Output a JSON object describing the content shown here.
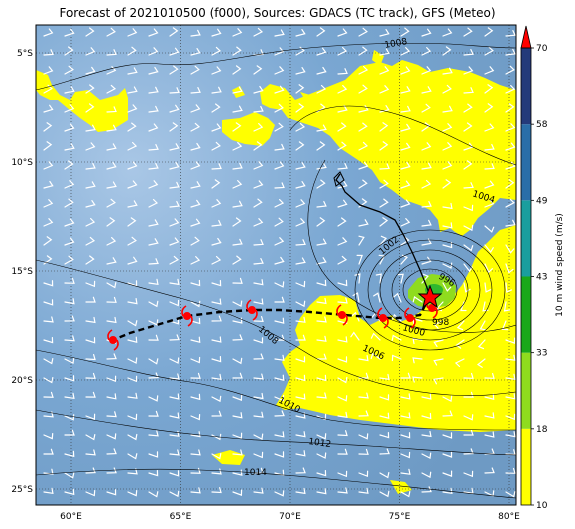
{
  "title": "Forecast of 2021010500 (f000), Sources: GDACS (TC track), GFS (Meteo)",
  "map": {
    "lon_range": [
      58.5,
      80.5
    ],
    "lat_range": [
      -25.5,
      -3.5
    ],
    "lon_ticks": [
      "60°E",
      "65°E",
      "70°E",
      "75°E",
      "80°E"
    ],
    "lat_ticks": [
      "5°S",
      "10°S",
      "15°S",
      "20°S",
      "25°S"
    ],
    "gridlines": "dotted",
    "colors": {
      "ocean": "#7ba7cf",
      "wind_18_33": "#ffff00",
      "wind_33_43": "#8fdc1e",
      "track": "#000000",
      "storm_symbol": "#ff0000"
    },
    "isobar_labels": [
      "1008",
      "1004",
      "1002",
      "996",
      "998",
      "1000",
      "1006",
      "1008",
      "1010",
      "1012",
      "1014"
    ]
  },
  "colorbar": {
    "label": "10 m wind speed (m/s)",
    "ticks": [
      "10",
      "18",
      "33",
      "43",
      "49",
      "58",
      "70"
    ],
    "colors": [
      "#ffff00",
      "#8fdc1e",
      "#1aa81a",
      "#1a9e9e",
      "#2a6ea8",
      "#243a7a",
      "#ff0000"
    ]
  }
}
